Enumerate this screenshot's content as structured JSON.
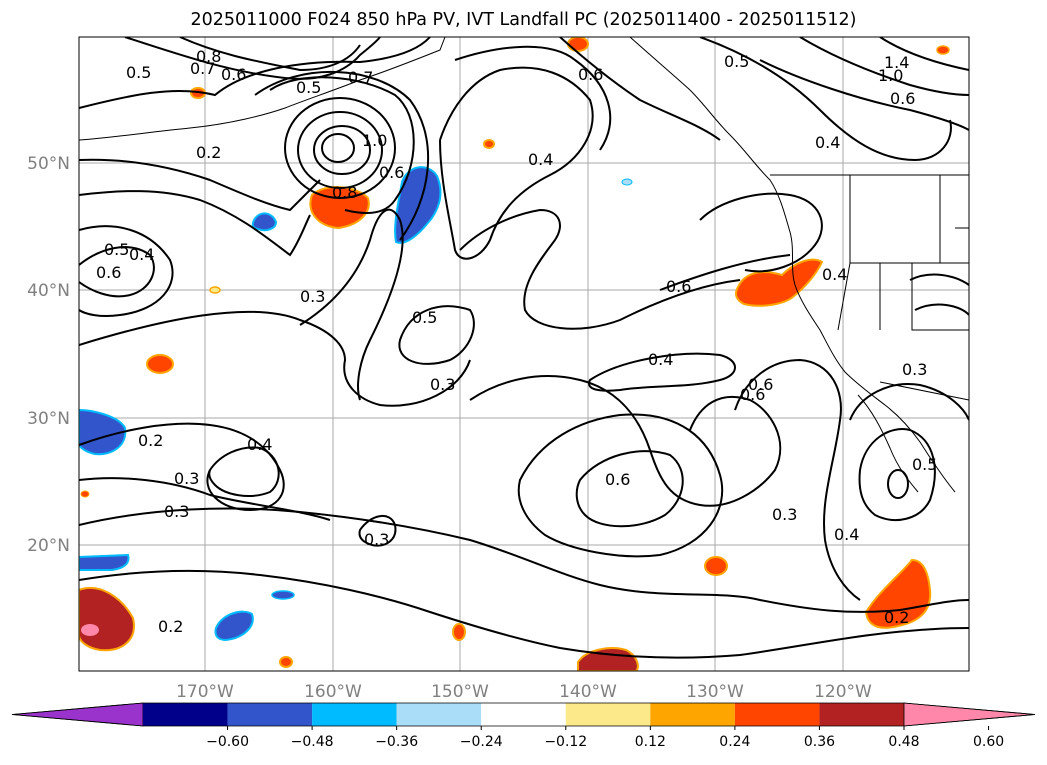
{
  "title": "2025011000 F024 850 hPa PV, IVT Landfall PC (2025011400 - 2025011512)",
  "map": {
    "lat_labels": [
      "50°N",
      "40°N",
      "30°N",
      "20°N"
    ],
    "lon_labels": [
      "170°W",
      "160°W",
      "150°W",
      "140°W",
      "130°W",
      "120°W"
    ],
    "contour_labels": [
      "0.8",
      "0.7",
      "0.6",
      "0.5",
      "0.5",
      "0.7",
      "1.0",
      "0.8",
      "0.6",
      "0.2",
      "0.5",
      "0.4",
      "0.6",
      "0.3",
      "0.4",
      "0.6",
      "0.5",
      "1.4",
      "1.0",
      "0.6",
      "0.4",
      "0.6",
      "0.5",
      "0.4",
      "0.3",
      "0.4",
      "0.6",
      "0.3",
      "0.2",
      "0.4",
      "0.3",
      "0.3",
      "0.6",
      "0.6",
      "0.3",
      "0.4",
      "0.3",
      "0.5",
      "0.2",
      "0.2"
    ]
  },
  "colorbar": {
    "colors": [
      "#9933cc",
      "#00008b",
      "#3355cc",
      "#00bbff",
      "#aaddf7",
      "#ffffff",
      "#fce98a",
      "#ffa500",
      "#ff4500",
      "#b22222",
      "#ff88aa"
    ],
    "tick_labels": [
      "−0.60",
      "−0.48",
      "−0.36",
      "−0.24",
      "−0.12",
      "0.12",
      "0.24",
      "0.36",
      "0.48",
      "0.60"
    ]
  }
}
